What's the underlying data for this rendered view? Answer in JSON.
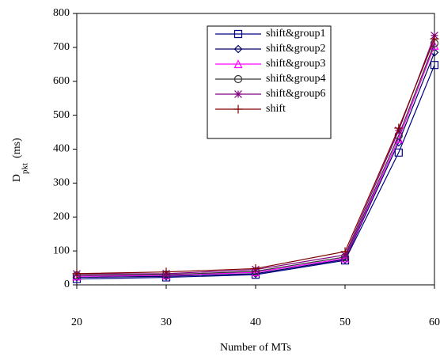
{
  "chart_data": {
    "type": "line",
    "x_label": "Number of MTs",
    "y_label": "D",
    "y_label_sub": "pkt",
    "y_label_unit": "(ms)",
    "x": [
      20,
      30,
      40,
      50,
      56,
      60
    ],
    "xlim": [
      20,
      60
    ],
    "xticks": [
      20,
      30,
      40,
      50,
      60
    ],
    "ylim": [
      0,
      800
    ],
    "yticks": [
      0,
      100,
      200,
      300,
      400,
      500,
      600,
      700,
      800
    ],
    "grid": false,
    "legend": "top-right",
    "series": [
      {
        "name": "shift&group1",
        "color": "#000080",
        "marker": "square",
        "values": [
          17,
          22,
          30,
          72,
          390,
          648
        ]
      },
      {
        "name": "shift&group2",
        "color": "#000066",
        "marker": "diamond",
        "values": [
          22,
          25,
          33,
          75,
          420,
          685
        ]
      },
      {
        "name": "shift&group3",
        "color": "#ff00ff",
        "marker": "triangle",
        "values": [
          25,
          28,
          37,
          78,
          430,
          705
        ]
      },
      {
        "name": "shift&group4",
        "color": "#333333",
        "marker": "circle",
        "values": [
          28,
          30,
          40,
          82,
          440,
          712
        ]
      },
      {
        "name": "shift&group6",
        "color": "#800080",
        "marker": "asterisk",
        "values": [
          32,
          33,
          45,
          88,
          455,
          735
        ]
      },
      {
        "name": "shift",
        "color": "#800000",
        "marker": "plus",
        "values": [
          33,
          38,
          48,
          98,
          462,
          725
        ]
      }
    ]
  }
}
